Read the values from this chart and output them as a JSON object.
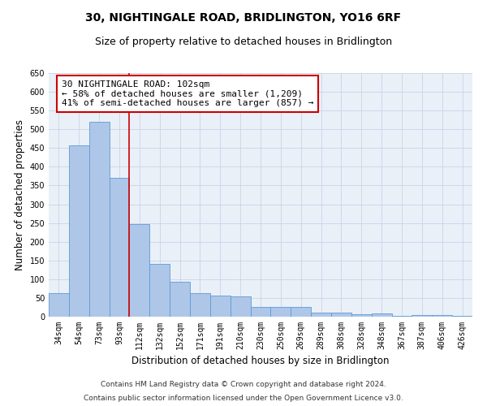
{
  "title": "30, NIGHTINGALE ROAD, BRIDLINGTON, YO16 6RF",
  "subtitle": "Size of property relative to detached houses in Bridlington",
  "xlabel": "Distribution of detached houses by size in Bridlington",
  "ylabel": "Number of detached properties",
  "categories": [
    "34sqm",
    "54sqm",
    "73sqm",
    "93sqm",
    "112sqm",
    "132sqm",
    "152sqm",
    "171sqm",
    "191sqm",
    "210sqm",
    "230sqm",
    "250sqm",
    "269sqm",
    "289sqm",
    "308sqm",
    "328sqm",
    "348sqm",
    "367sqm",
    "387sqm",
    "406sqm",
    "426sqm"
  ],
  "values": [
    62,
    458,
    521,
    370,
    248,
    140,
    93,
    62,
    57,
    55,
    26,
    26,
    26,
    11,
    11,
    6,
    9,
    3,
    5,
    4,
    3
  ],
  "bar_color": "#aec6e8",
  "bar_edge_color": "#5b9bd5",
  "grid_color": "#c8d4e8",
  "background_color": "#eaf0f8",
  "vline_color": "#cc0000",
  "annotation_line1": "30 NIGHTINGALE ROAD: 102sqm",
  "annotation_line2": "← 58% of detached houses are smaller (1,209)",
  "annotation_line3": "41% of semi-detached houses are larger (857) →",
  "annotation_box_color": "#ffffff",
  "annotation_box_edge": "#cc0000",
  "ylim": [
    0,
    650
  ],
  "yticks": [
    0,
    50,
    100,
    150,
    200,
    250,
    300,
    350,
    400,
    450,
    500,
    550,
    600,
    650
  ],
  "footnote1": "Contains HM Land Registry data © Crown copyright and database right 2024.",
  "footnote2": "Contains public sector information licensed under the Open Government Licence v3.0.",
  "title_fontsize": 10,
  "subtitle_fontsize": 9,
  "xlabel_fontsize": 8.5,
  "ylabel_fontsize": 8.5,
  "tick_fontsize": 7,
  "annotation_fontsize": 8,
  "footnote_fontsize": 6.5,
  "vline_x": 3.5
}
